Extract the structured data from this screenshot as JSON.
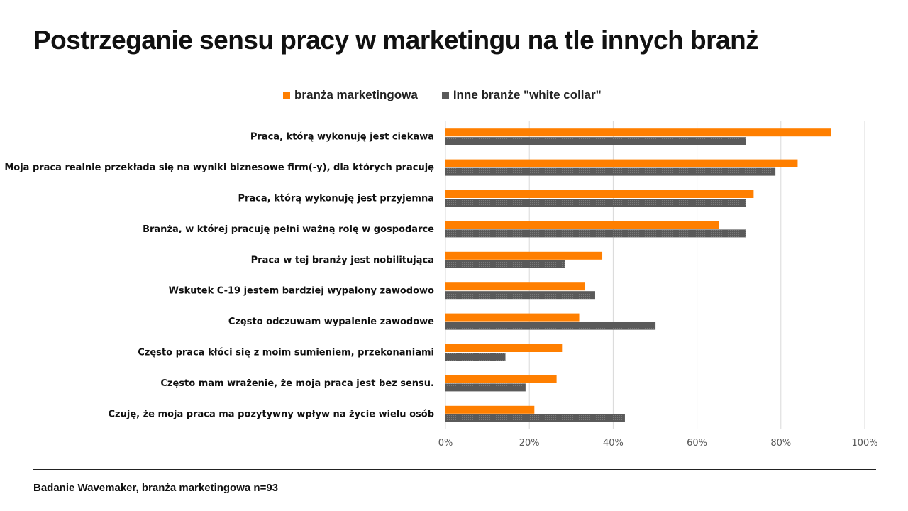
{
  "title": "Postrzeganie sensu pracy w marketingu na tle innych branż",
  "footnote": "Badanie Wavemaker, branża marketingowa n=93",
  "colors": {
    "marketing": "#ff7f00",
    "other": "#5a5a5a",
    "grid": "#d9d9d9",
    "axis_text": "#595959"
  },
  "chart_data": {
    "type": "bar",
    "orientation": "horizontal",
    "categories": [
      "Praca, którą wykonuję jest ciekawa",
      "Moja praca realnie przekłada się na wyniki biznesowe firm(-y), dla których pracuję",
      "Praca, którą wykonuję jest przyjemna",
      "Branża, w której pracuję pełni ważną rolę w gospodarce",
      "Praca w tej branży jest nobilitująca",
      "Wskutek C-19 jestem bardziej wypalony zawodowo",
      "Często odczuwam wypalenie zawodowe",
      "Często praca kłóci się z moim sumieniem, przekonaniami",
      "Często mam wrażenie, że moja praca jest bez sensu.",
      "Czuję, że moja praca ma pozytywny wpływ na życie wielu osób"
    ],
    "series": [
      {
        "name": "branża marketingowa",
        "values": [
          92,
          84,
          73.5,
          65.3,
          37.4,
          33.3,
          31.9,
          27.8,
          26.5,
          21.2
        ]
      },
      {
        "name": "Inne branże \"white collar\"",
        "values": [
          71.6,
          78.7,
          71.6,
          71.6,
          28.5,
          35.7,
          50.1,
          14.3,
          19.1,
          42.8
        ]
      }
    ],
    "xlim": [
      0,
      100
    ],
    "xticks": [
      "0%",
      "20%",
      "40%",
      "60%",
      "80%",
      "100%"
    ],
    "grid": true,
    "legend_position": "top"
  }
}
